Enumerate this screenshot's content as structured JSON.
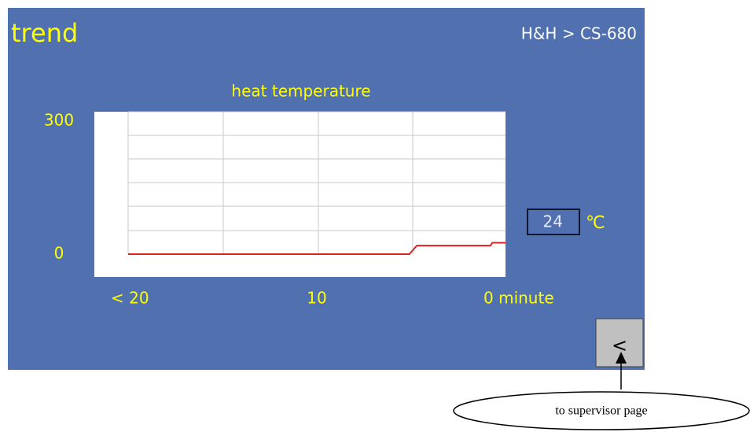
{
  "header": {
    "title": "trend",
    "breadcrumb": "H&H > CS-680"
  },
  "chart": {
    "type": "line",
    "title": "heat temperature",
    "ylim": [
      0,
      300
    ],
    "yticks": [
      0,
      300
    ],
    "xlim": [
      20,
      0
    ],
    "xticks": [
      {
        "value": 20,
        "label": "< 20"
      },
      10,
      {
        "value": 0,
        "label": "0 minute"
      }
    ],
    "x": [
      20,
      5.1,
      4.7,
      0.8,
      0.7,
      0
    ],
    "series": [
      {
        "color": "#e02020",
        "values": [
          0,
          0,
          18,
          18,
          24,
          24
        ]
      }
    ]
  },
  "reading": {
    "value": 24,
    "unit": "℃"
  },
  "button": {
    "label": "<"
  },
  "callout": {
    "text": "to supervisor page"
  }
}
